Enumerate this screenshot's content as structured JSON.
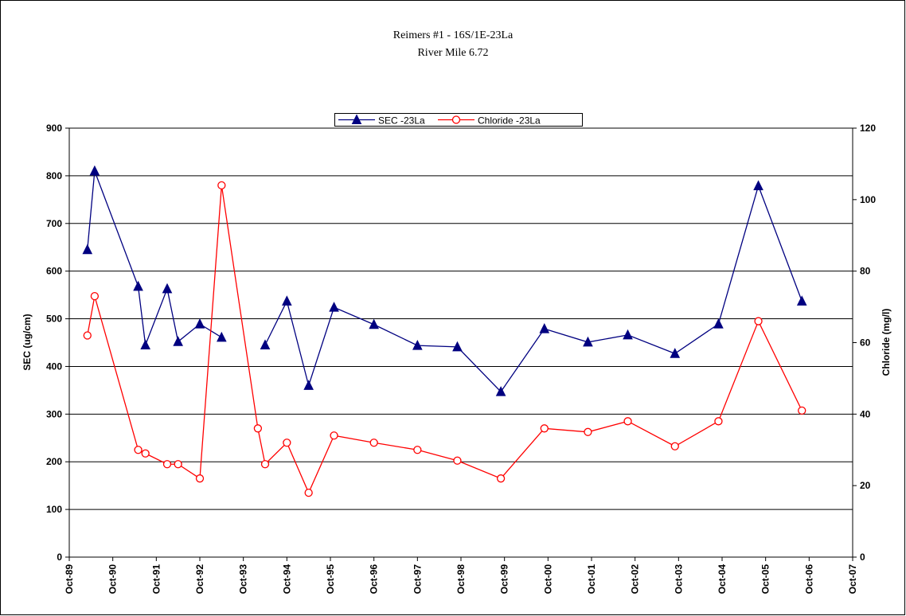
{
  "chart_data": {
    "type": "line",
    "title": "Reimers #1 - 16S/1E-23La",
    "subtitle": "River Mile 6.72",
    "y_label": "SEC (ug/cm)",
    "y2_label": "Chloride (mg/l)",
    "x": [
      "1990-03",
      "1990-05",
      "1991-05",
      "1991-07",
      "1992-01",
      "1992-04",
      "1992-10",
      "1993-04",
      "1994-02",
      "1994-04",
      "1994-10",
      "1995-04",
      "1995-11",
      "1996-10",
      "1997-10",
      "1998-09",
      "1999-09",
      "2000-09",
      "2001-09",
      "2002-08",
      "2003-09",
      "2004-09",
      "2005-08",
      "2006-08"
    ],
    "series": [
      {
        "name": "SEC -23La",
        "color": "#000080",
        "marker": "triangle",
        "axis": "y",
        "values": [
          645,
          810,
          568,
          445,
          563,
          452,
          489,
          461,
          null,
          445,
          537,
          360,
          524,
          488,
          444,
          441,
          347,
          479,
          451,
          466,
          427,
          489,
          779,
          537
        ]
      },
      {
        "name": "Chloride -23La",
        "color": "#ff0000",
        "marker": "circle",
        "axis": "y2",
        "values": [
          62,
          73,
          30,
          29,
          26,
          26,
          22,
          104,
          36,
          26,
          32,
          18,
          34,
          32,
          30,
          27,
          22,
          36,
          35,
          38,
          31,
          38,
          66,
          41
        ]
      }
    ],
    "xlim": [
      "1989-10",
      "2007-10"
    ],
    "xticks": [
      {
        "value": "1989-10",
        "label": "Oct-89"
      },
      {
        "value": "1990-10",
        "label": "Oct-90"
      },
      {
        "value": "1991-10",
        "label": "Oct-91"
      },
      {
        "value": "1992-10",
        "label": "Oct-92"
      },
      {
        "value": "1993-10",
        "label": "Oct-93"
      },
      {
        "value": "1994-10",
        "label": "Oct-94"
      },
      {
        "value": "1995-10",
        "label": "Oct-95"
      },
      {
        "value": "1996-10",
        "label": "Oct-96"
      },
      {
        "value": "1997-10",
        "label": "Oct-97"
      },
      {
        "value": "1998-10",
        "label": "Oct-98"
      },
      {
        "value": "1999-10",
        "label": "Oct-99"
      },
      {
        "value": "2000-10",
        "label": "Oct-00"
      },
      {
        "value": "2001-10",
        "label": "Oct-01"
      },
      {
        "value": "2002-10",
        "label": "Oct-02"
      },
      {
        "value": "2003-10",
        "label": "Oct-03"
      },
      {
        "value": "2004-10",
        "label": "Oct-04"
      },
      {
        "value": "2005-10",
        "label": "Oct-05"
      },
      {
        "value": "2006-10",
        "label": "Oct-06"
      },
      {
        "value": "2007-10",
        "label": "Oct-07"
      }
    ],
    "ylim": [
      0,
      900
    ],
    "yticks": [
      0,
      100,
      200,
      300,
      400,
      500,
      600,
      700,
      800,
      900
    ],
    "y2lim": [
      0,
      120
    ],
    "y2ticks": [
      0,
      20,
      40,
      60,
      80,
      100,
      120
    ],
    "grid": true
  }
}
